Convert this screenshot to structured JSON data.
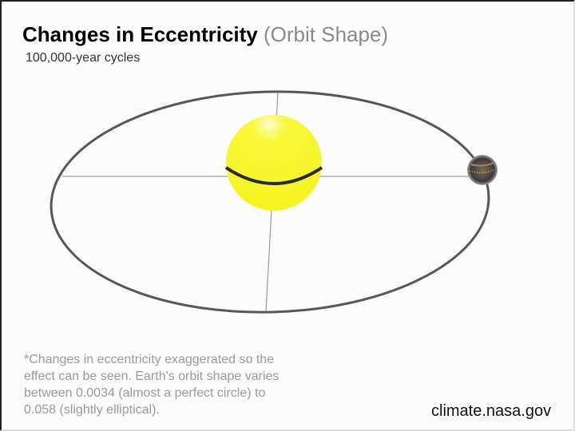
{
  "title": {
    "main": "Changes in Eccentricity",
    "secondary": "(Orbit Shape)"
  },
  "subtitle": "100,000-year cycles",
  "note": "*Changes in eccentricity exaggerated so the effect can be seen. Earth's orbit shape varies between 0.0034 (almost a perfect circle) to 0.058 (slightly elliptical).",
  "credit": "climate.nasa.gov",
  "colors": {
    "sun": "#f8f836",
    "orbit": "#5a5656",
    "axis": "#a09a96",
    "earth": "#4a4440"
  }
}
